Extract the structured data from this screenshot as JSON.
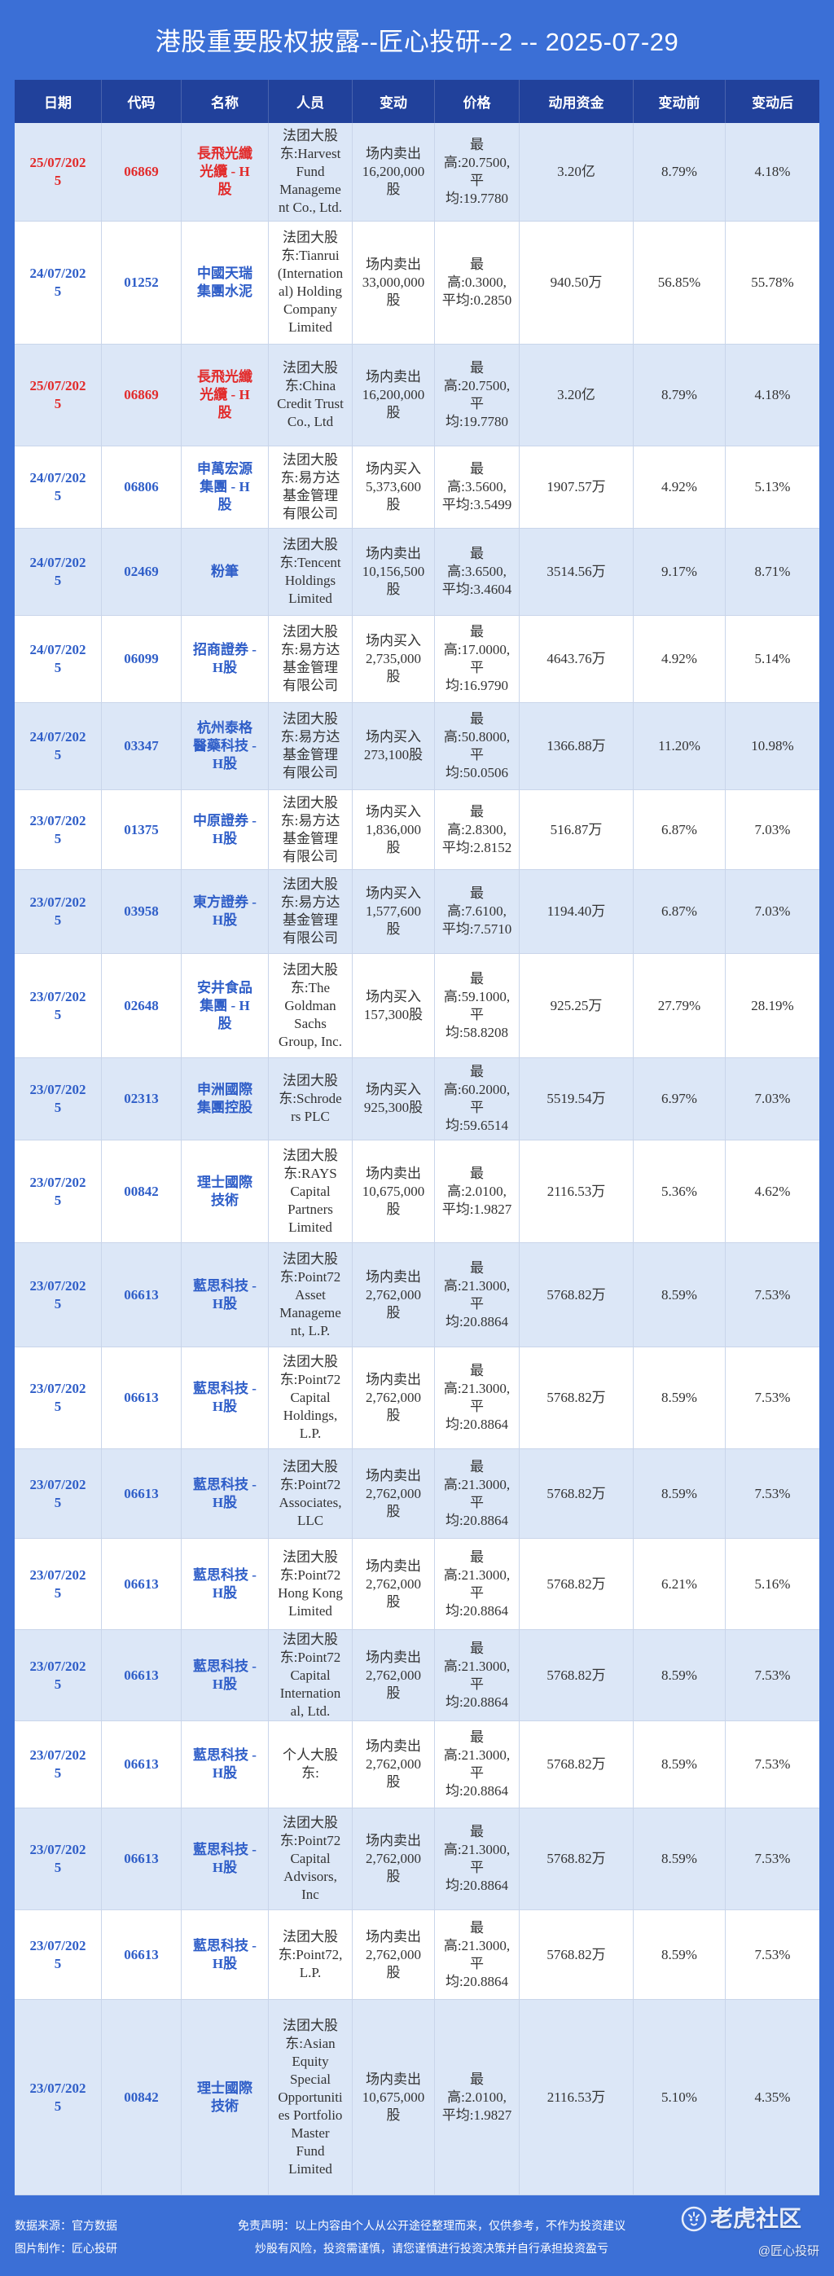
{
  "title": "港股重要股权披露--匠心投研--2 -- 2025-07-29",
  "colors": {
    "background": "#3b6fd6",
    "header_bg": "#21419b",
    "row_bg": "#ffffff",
    "row_alt_bg": "#dce7f7",
    "primary_text": "#2f5ec8",
    "highlight_text": "#e22b2b",
    "body_text": "#333333"
  },
  "table": {
    "columns": [
      "日期",
      "代码",
      "名称",
      "人员",
      "变动",
      "价格",
      "动用资金",
      "变动前",
      "变动后"
    ],
    "rows": [
      {
        "date": "25/07/2025",
        "code": "06869",
        "name": "長飛光纖光纜 - H股",
        "person": "法团大股东:Harvest Fund Management Co., Ltd.",
        "change": "场内卖出16,200,000股",
        "price": "最高:20.7500,平均:19.7780",
        "amount": "3.20亿",
        "before": "8.79%",
        "after": "4.18%",
        "highlight": true
      },
      {
        "date": "24/07/2025",
        "code": "01252",
        "name": "中國天瑞集團水泥",
        "person": "法团大股东:Tianrui (International) Holding Company Limited",
        "change": "场内卖出33,000,000股",
        "price": "最高:0.3000,平均:0.2850",
        "amount": "940.50万",
        "before": "56.85%",
        "after": "55.78%"
      },
      {
        "date": "25/07/2025",
        "code": "06869",
        "name": "長飛光纖光纜 - H股",
        "person": "法团大股东:China Credit Trust Co., Ltd",
        "change": "场内卖出16,200,000股",
        "price": "最高:20.7500,平均:19.7780",
        "amount": "3.20亿",
        "before": "8.79%",
        "after": "4.18%",
        "highlight": true
      },
      {
        "date": "24/07/2025",
        "code": "06806",
        "name": "申萬宏源集團 - H股",
        "person": "法团大股东:易方达基金管理有限公司",
        "change": "场内买入5,373,600股",
        "price": "最高:3.5600,平均:3.5499",
        "amount": "1907.57万",
        "before": "4.92%",
        "after": "5.13%"
      },
      {
        "date": "24/07/2025",
        "code": "02469",
        "name": "粉筆",
        "person": "法团大股东:Tencent Holdings Limited",
        "change": "场内卖出10,156,500股",
        "price": "最高:3.6500,平均:3.4604",
        "amount": "3514.56万",
        "before": "9.17%",
        "after": "8.71%"
      },
      {
        "date": "24/07/2025",
        "code": "06099",
        "name": "招商證券 - H股",
        "person": "法团大股东:易方达基金管理有限公司",
        "change": "场内买入2,735,000股",
        "price": "最高:17.0000,平均:16.9790",
        "amount": "4643.76万",
        "before": "4.92%",
        "after": "5.14%"
      },
      {
        "date": "24/07/2025",
        "code": "03347",
        "name": "杭州泰格醫藥科技 - H股",
        "person": "法团大股东:易方达基金管理有限公司",
        "change": "场内买入273,100股",
        "price": "最高:50.8000,平均:50.0506",
        "amount": "1366.88万",
        "before": "11.20%",
        "after": "10.98%"
      },
      {
        "date": "23/07/2025",
        "code": "01375",
        "name": "中原證券 - H股",
        "person": "法团大股东:易方达基金管理有限公司",
        "change": "场内买入1,836,000股",
        "price": "最高:2.8300,平均:2.8152",
        "amount": "516.87万",
        "before": "6.87%",
        "after": "7.03%"
      },
      {
        "date": "23/07/2025",
        "code": "03958",
        "name": "東方證券 - H股",
        "person": "法团大股东:易方达基金管理有限公司",
        "change": "场内买入1,577,600股",
        "price": "最高:7.6100,平均:7.5710",
        "amount": "1194.40万",
        "before": "6.87%",
        "after": "7.03%"
      },
      {
        "date": "23/07/2025",
        "code": "02648",
        "name": "安井食品集團 - H股",
        "person": "法团大股东:The Goldman Sachs Group, Inc.",
        "change": "场内买入157,300股",
        "price": "最高:59.1000,平均:58.8208",
        "amount": "925.25万",
        "before": "27.79%",
        "after": "28.19%"
      },
      {
        "date": "23/07/2025",
        "code": "02313",
        "name": "申洲國際集團控股",
        "person": "法团大股东:Schroders PLC",
        "change": "场内买入925,300股",
        "price": "最高:60.2000,平均:59.6514",
        "amount": "5519.54万",
        "before": "6.97%",
        "after": "7.03%"
      },
      {
        "date": "23/07/2025",
        "code": "00842",
        "name": "理士國際技術",
        "person": "法团大股东:RAYS Capital Partners Limited",
        "change": "场内卖出10,675,000股",
        "price": "最高:2.0100,平均:1.9827",
        "amount": "2116.53万",
        "before": "5.36%",
        "after": "4.62%"
      },
      {
        "date": "23/07/2025",
        "code": "06613",
        "name": "藍思科技 - H股",
        "person": "法团大股东:Point72 Asset Management, L.P.",
        "change": "场内卖出2,762,000股",
        "price": "最高:21.3000,平均:20.8864",
        "amount": "5768.82万",
        "before": "8.59%",
        "after": "7.53%"
      },
      {
        "date": "23/07/2025",
        "code": "06613",
        "name": "藍思科技 - H股",
        "person": "法团大股东:Point72 Capital Holdings, L.P.",
        "change": "场内卖出2,762,000股",
        "price": "最高:21.3000,平均:20.8864",
        "amount": "5768.82万",
        "before": "8.59%",
        "after": "7.53%"
      },
      {
        "date": "23/07/2025",
        "code": "06613",
        "name": "藍思科技 - H股",
        "person": "法团大股东:Point72 Associates, LLC",
        "change": "场内卖出2,762,000股",
        "price": "最高:21.3000,平均:20.8864",
        "amount": "5768.82万",
        "before": "8.59%",
        "after": "7.53%"
      },
      {
        "date": "23/07/2025",
        "code": "06613",
        "name": "藍思科技 - H股",
        "person": "法团大股东:Point72 Hong Kong Limited",
        "change": "场内卖出2,762,000股",
        "price": "最高:21.3000,平均:20.8864",
        "amount": "5768.82万",
        "before": "6.21%",
        "after": "5.16%"
      },
      {
        "date": "23/07/2025",
        "code": "06613",
        "name": "藍思科技 - H股",
        "person": "法团大股东:Point72 Capital International, Ltd.",
        "change": "场内卖出2,762,000股",
        "price": "最高:21.3000,平均:20.8864",
        "amount": "5768.82万",
        "before": "8.59%",
        "after": "7.53%"
      },
      {
        "date": "23/07/2025",
        "code": "06613",
        "name": "藍思科技 - H股",
        "person": "个人大股东:",
        "change": "场内卖出2,762,000股",
        "price": "最高:21.3000,平均:20.8864",
        "amount": "5768.82万",
        "before": "8.59%",
        "after": "7.53%"
      },
      {
        "date": "23/07/2025",
        "code": "06613",
        "name": "藍思科技 - H股",
        "person": "法团大股东:Point72 Capital Advisors, Inc",
        "change": "场内卖出2,762,000股",
        "price": "最高:21.3000,平均:20.8864",
        "amount": "5768.82万",
        "before": "8.59%",
        "after": "7.53%"
      },
      {
        "date": "23/07/2025",
        "code": "06613",
        "name": "藍思科技 - H股",
        "person": "法团大股东:Point72, L.P.",
        "change": "场内卖出2,762,000股",
        "price": "最高:21.3000,平均:20.8864",
        "amount": "5768.82万",
        "before": "8.59%",
        "after": "7.53%"
      },
      {
        "date": "23/07/2025",
        "code": "00842",
        "name": "理士國際技術",
        "person": "法团大股东:Asian Equity Special Opportunities Portfolio Master Fund Limited",
        "change": "场内卖出10,675,000股",
        "price": "最高:2.0100,平均:1.9827",
        "amount": "2116.53万",
        "before": "5.10%",
        "after": "4.35%"
      }
    ]
  },
  "footer": {
    "source": "数据来源：官方数据",
    "maker": "图片制作：匠心投研",
    "disclaimer": "免责声明：以上内容由个人从公开途径整理而来，仅供参考，不作为投资建议",
    "risk": "炒股有风险，投资需谨慎，请您谨慎进行投资决策并自行承担投资盈亏"
  },
  "watermark": {
    "icon": "tiger-icon",
    "brand": "老虎社区",
    "handle": "@匠心投研"
  }
}
